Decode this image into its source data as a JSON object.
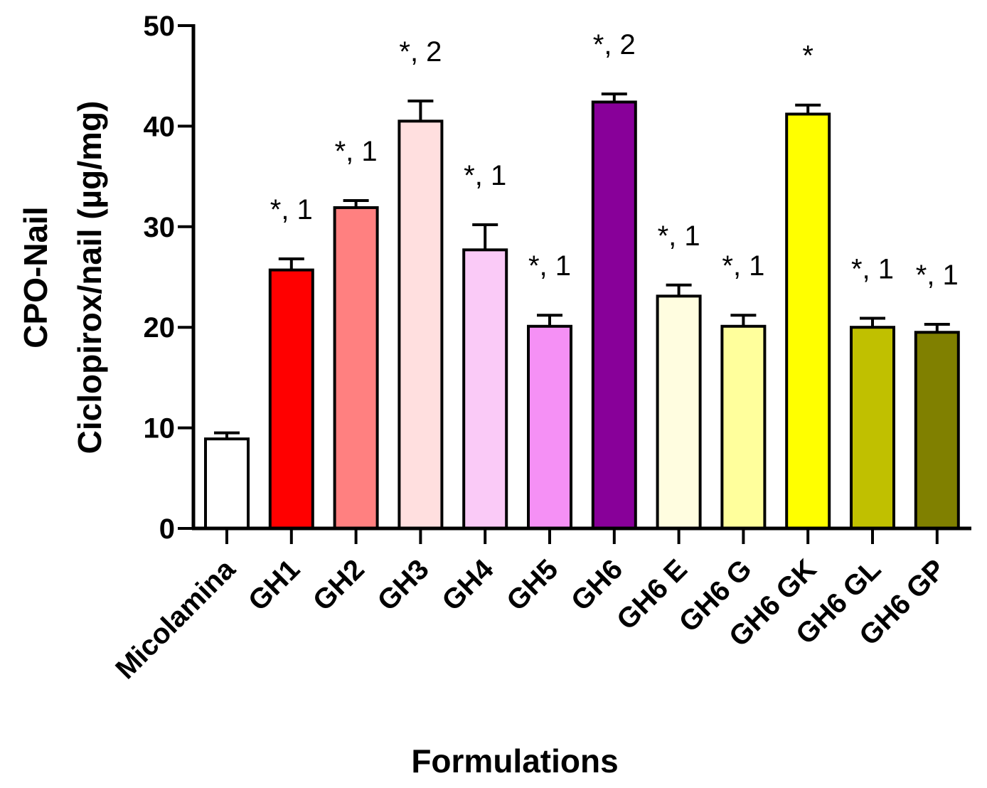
{
  "chart_data": {
    "type": "bar",
    "title": "",
    "xlabel": "Formulations",
    "ylabel_lines": [
      "CPO-Nail",
      "Ciclopirox/nail (µg/mg)"
    ],
    "ylim": [
      0,
      50
    ],
    "yticks": [
      0,
      10,
      20,
      30,
      40,
      50
    ],
    "yticks_text": [
      "0",
      "10",
      "20",
      "30",
      "40",
      "50"
    ],
    "grid": false,
    "legend": "none",
    "categories": [
      "Micolamina",
      "GH1",
      "GH2",
      "GH3",
      "GH4",
      "GH5",
      "GH6",
      "GH6 E",
      "GH6 G",
      "GH6 GK",
      "GH6 GL",
      "GH6 GP"
    ],
    "values": [
      8.9,
      25.7,
      31.9,
      40.5,
      27.7,
      20.1,
      42.4,
      23.1,
      20.1,
      41.2,
      20.0,
      19.5
    ],
    "errors": [
      0.6,
      1.1,
      0.7,
      2.0,
      2.5,
      1.1,
      0.8,
      1.1,
      1.1,
      0.9,
      0.9,
      0.8
    ],
    "colors": [
      "#FFFFFF",
      "#FF0000",
      "#FF8080",
      "#FFDFDF",
      "#FACAF7",
      "#F590F5",
      "#880099",
      "#FFFDE0",
      "#FFFF9C",
      "#FFFF00",
      "#C0C000",
      "#808000"
    ],
    "annotations": [
      "",
      "*, 1",
      "*, 1",
      "*, 2",
      "*, 1",
      "*, 1",
      "*, 2",
      "*, 1",
      "*, 1",
      "*",
      "*, 1",
      "*, 1"
    ]
  }
}
